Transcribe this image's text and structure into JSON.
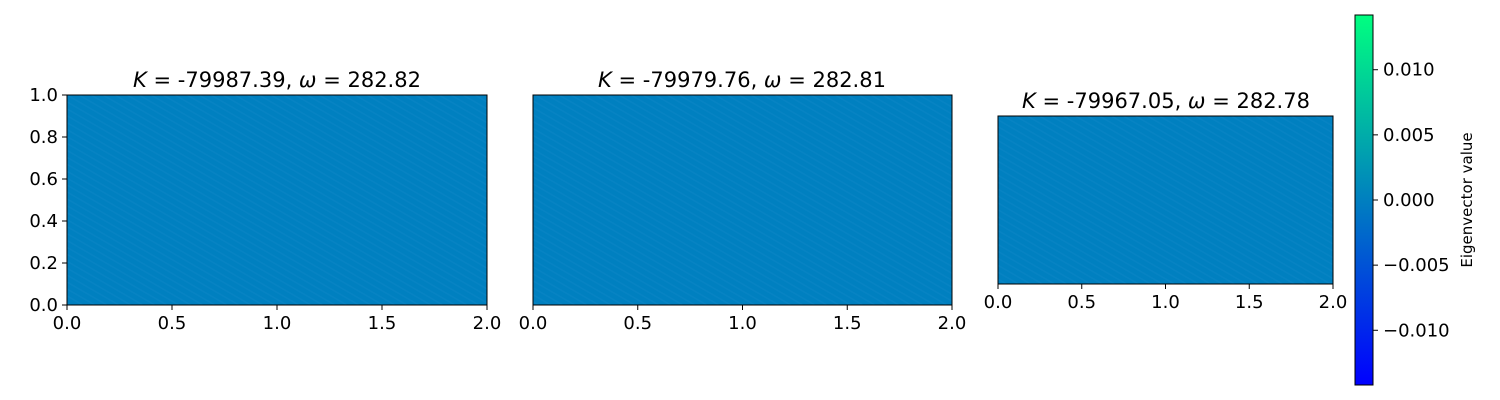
{
  "chart_data": [
    {
      "type": "heatmap",
      "title_var": "K",
      "title_k": "-79987.39",
      "title_omega_var": "ω",
      "title_omega": "282.82",
      "xlim": [
        0.0,
        2.0
      ],
      "ylim": [
        0.0,
        1.0
      ],
      "xticks": [
        "0.0",
        "0.5",
        "1.0",
        "1.5",
        "2.0"
      ],
      "yticks": [
        "0.0",
        "0.2",
        "0.4",
        "0.6",
        "0.8",
        "1.0"
      ],
      "fill_value": 0.0,
      "pattern": "fine-stripes"
    },
    {
      "type": "heatmap",
      "title_var": "K",
      "title_k": "-79979.76",
      "title_omega_var": "ω",
      "title_omega": "282.81",
      "xlim": [
        0.0,
        2.0
      ],
      "ylim": [
        0.0,
        1.0
      ],
      "xticks": [
        "0.0",
        "0.5",
        "1.0",
        "1.5",
        "2.0"
      ],
      "yticks": [],
      "fill_value": 0.0,
      "pattern": "fine-stripes"
    },
    {
      "type": "heatmap",
      "title_var": "K",
      "title_k": "-79967.05",
      "title_omega_var": "ω",
      "title_omega": "282.78",
      "xlim": [
        0.0,
        2.0
      ],
      "ylim": [
        0.0,
        1.0
      ],
      "xticks": [
        "0.0",
        "0.5",
        "1.0",
        "1.5",
        "2.0"
      ],
      "yticks": [],
      "fill_value": 0.0,
      "pattern": "fine-stripes"
    }
  ],
  "colorbar": {
    "label": "Eigenvector value",
    "colormap": "winter",
    "vmin": -0.0142,
    "vmax": 0.0142,
    "ticks": [
      -0.01,
      -0.005,
      0.0,
      0.005,
      0.01
    ],
    "tick_labels": [
      "−0.010",
      "−0.005",
      "0.000",
      "0.005",
      "0.010"
    ],
    "color_low": "#0000ff",
    "color_high": "#00ff80"
  }
}
